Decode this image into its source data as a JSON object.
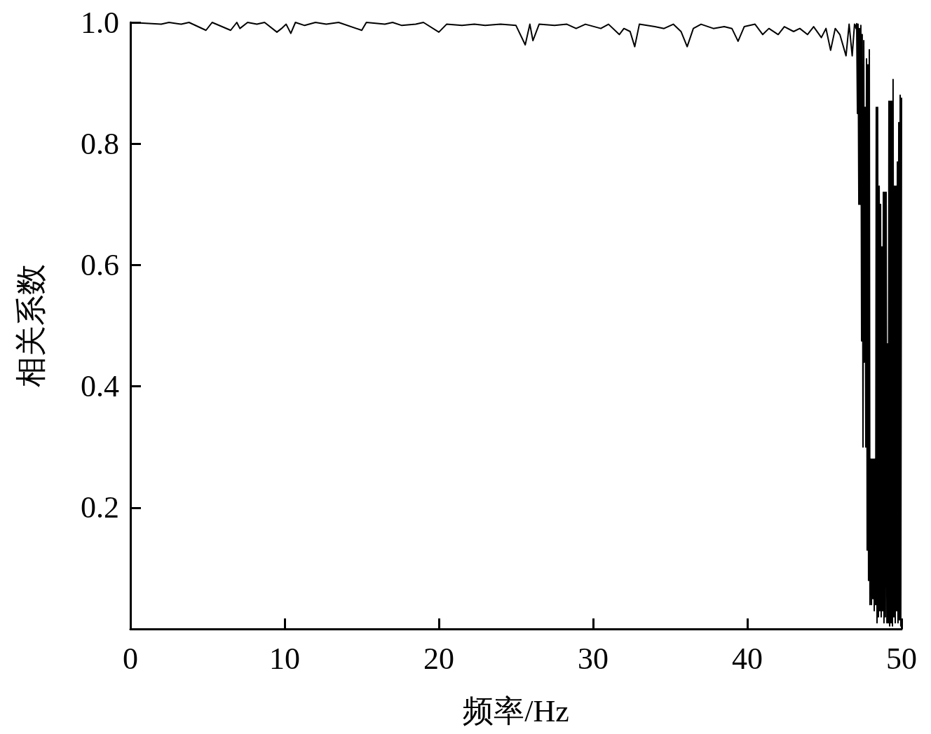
{
  "chart_data": {
    "type": "line",
    "xlabel": "频率/Hz",
    "ylabel": "相关系数",
    "color": "#000000",
    "marker": "none",
    "line_style": "solid",
    "grid": false,
    "xlim": [
      0,
      50
    ],
    "xticks": [
      0,
      10,
      20,
      30,
      40,
      50
    ],
    "ylim": [
      0,
      1
    ],
    "yticks": [
      0.2,
      0.4,
      0.6,
      0.8,
      {
        "value": 1,
        "label": "1.0"
      }
    ],
    "x": [
      0,
      2,
      2.5,
      3.3,
      3.8,
      4.9,
      5.3,
      6.5,
      6.9,
      7.1,
      7.6,
      8.2,
      8.7,
      9.5,
      9.8,
      10.1,
      10.4,
      10.7,
      11.3,
      12,
      12.7,
      13.5,
      15,
      15.3,
      16.5,
      17,
      17.6,
      18.5,
      19,
      20,
      20.5,
      21.5,
      22.3,
      23,
      24,
      25,
      25.6,
      25.9,
      26.1,
      26.5,
      27.5,
      28.3,
      28.9,
      29.5,
      30.5,
      31,
      31.7,
      32,
      32.4,
      32.7,
      33,
      34,
      34.6,
      35.2,
      35.7,
      36.1,
      36.5,
      37,
      37.8,
      38.5,
      39,
      39.4,
      39.8,
      40.5,
      41,
      41.4,
      42,
      42.4,
      43,
      43.4,
      43.9,
      44.3,
      44.8,
      45.1,
      45.4,
      45.7,
      46,
      46.4,
      46.6,
      46.8,
      46.95,
      47,
      47.05,
      47.09,
      47.14,
      47.18,
      47.23,
      47.27,
      47.32,
      47.36,
      47.41,
      47.45,
      47.5,
      47.55,
      47.59,
      47.64,
      47.68,
      47.73,
      47.77,
      47.82,
      47.86,
      47.91,
      47.95,
      48,
      48.05,
      48.09,
      48.14,
      48.18,
      48.23,
      48.27,
      48.32,
      48.36,
      48.41,
      48.45,
      48.5,
      48.55,
      48.59,
      48.64,
      48.68,
      48.73,
      48.77,
      48.82,
      48.86,
      48.91,
      48.95,
      49,
      49.05,
      49.09,
      49.14,
      49.18,
      49.23,
      49.27,
      49.32,
      49.36,
      49.41,
      49.45,
      49.5,
      49.55,
      49.59,
      49.64,
      49.68,
      49.73,
      49.77,
      49.82,
      49.86,
      49.91,
      49.95,
      50
    ],
    "values": [
      1,
      0.997,
      1,
      0.997,
      1,
      0.987,
      1,
      0.987,
      1,
      0.99,
      1,
      0.997,
      1,
      0.984,
      0.99,
      0.997,
      0.982,
      1,
      0.995,
      1,
      0.997,
      1,
      0.987,
      1,
      0.997,
      1,
      0.995,
      0.997,
      1,
      0.984,
      0.997,
      0.995,
      0.997,
      0.995,
      0.997,
      0.995,
      0.963,
      0.997,
      0.97,
      0.997,
      0.995,
      0.997,
      0.99,
      0.997,
      0.99,
      0.997,
      0.98,
      0.99,
      0.985,
      0.96,
      0.997,
      0.993,
      0.99,
      0.997,
      0.985,
      0.96,
      0.99,
      0.997,
      0.99,
      0.993,
      0.99,
      0.969,
      0.993,
      0.997,
      0.98,
      0.99,
      0.98,
      0.993,
      0.985,
      0.99,
      0.98,
      0.993,
      0.975,
      0.99,
      0.954,
      0.99,
      0.98,
      0.945,
      0.997,
      0.945,
      0.997,
      0.995,
      0.99,
      0.998,
      0.85,
      0.997,
      0.7,
      0.99,
      0.7,
      0.995,
      0.475,
      0.98,
      0.3,
      0.97,
      0.44,
      0.86,
      0.3,
      0.94,
      0.13,
      0.93,
      0.08,
      0.955,
      0.04,
      0.28,
      0.04,
      0.28,
      0.05,
      0.28,
      0.03,
      0.28,
      0.04,
      0.86,
      0.01,
      0.86,
      0.02,
      0.73,
      0.03,
      0.7,
      0.02,
      0.63,
      0.03,
      0.72,
      0.01,
      0.72,
      0.02,
      0.72,
      0.01,
      0.47,
      0.01,
      0.87,
      0.005,
      0.87,
      0.01,
      0.87,
      0.005,
      0.906,
      0.02,
      0.73,
      0.01,
      0.73,
      0.03,
      0.77,
      0.01,
      0.835,
      0.015,
      0.88,
      0.005,
      0.875
    ]
  }
}
